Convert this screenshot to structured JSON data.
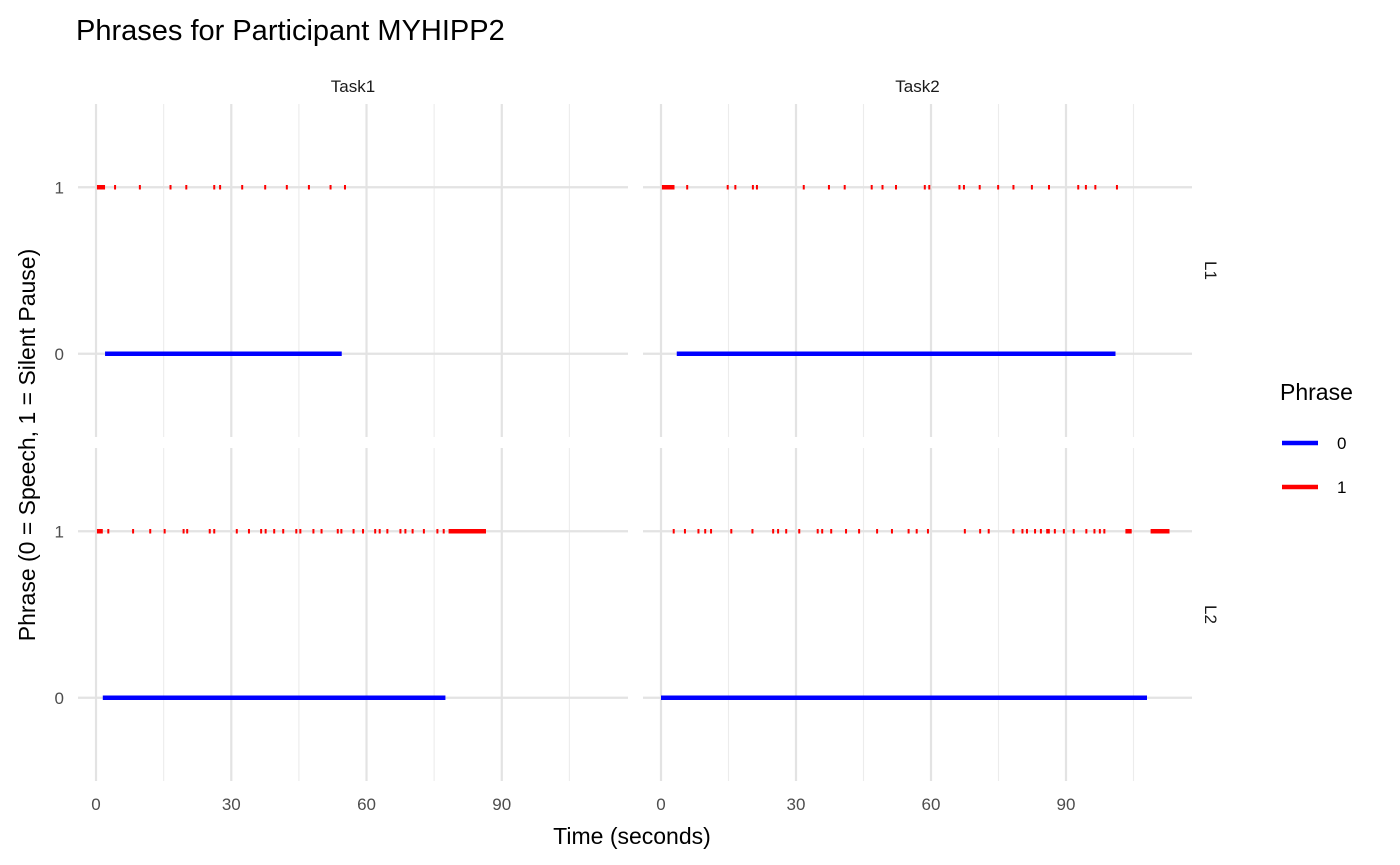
{
  "chart_data": {
    "type": "line",
    "title": "Phrases for Participant MYHIPP2",
    "xlabel": "Time (seconds)",
    "ylabel": "Phrase (0 = Speech, 1 = Silent Pause)",
    "facet_columns": [
      "Task1",
      "Task2"
    ],
    "facet_rows": [
      "L1",
      "L2"
    ],
    "x_ticks": [
      0,
      30,
      60,
      90
    ],
    "xlim": [
      -4,
      118
    ],
    "y_ticks": [
      0,
      1
    ],
    "ylim": [
      -0.5,
      1.5
    ],
    "grid": true,
    "legend": {
      "title": "Phrase",
      "position": "right",
      "entries": [
        {
          "label": "0",
          "color": "#0000ff"
        },
        {
          "label": "1",
          "color": "#ff0000"
        }
      ]
    },
    "panels": [
      {
        "column": "Task1",
        "row": "L1",
        "series": [
          {
            "name": "0",
            "color": "#0000ff",
            "segments": [
              [
                2.0,
                54.5
              ]
            ]
          },
          {
            "name": "1",
            "color": "#ff0000",
            "segments": [
              [
                0.2,
                2.0
              ],
              [
                4.0,
                4.4
              ],
              [
                9.5,
                9.9
              ],
              [
                16.3,
                16.7
              ],
              [
                19.8,
                20.2
              ],
              [
                26.0,
                26.4
              ],
              [
                27.3,
                27.7
              ],
              [
                32.2,
                32.6
              ],
              [
                37.3,
                37.7
              ],
              [
                42.1,
                42.5
              ],
              [
                47.0,
                47.4
              ],
              [
                51.8,
                52.2
              ],
              [
                55.0,
                55.4
              ]
            ]
          }
        ]
      },
      {
        "column": "Task2",
        "row": "L1",
        "series": [
          {
            "name": "0",
            "color": "#0000ff",
            "segments": [
              [
                3.5,
                101.0
              ]
            ]
          },
          {
            "name": "1",
            "color": "#ff0000",
            "segments": [
              [
                0.2,
                3.0
              ],
              [
                5.6,
                6.0
              ],
              [
                14.6,
                15.0
              ],
              [
                16.3,
                16.7
              ],
              [
                20.2,
                20.6
              ],
              [
                21.1,
                21.5
              ],
              [
                31.5,
                31.9
              ],
              [
                37.1,
                37.5
              ],
              [
                40.6,
                41.0
              ],
              [
                46.6,
                47.0
              ],
              [
                49.0,
                49.4
              ],
              [
                52.0,
                52.4
              ],
              [
                58.4,
                58.8
              ],
              [
                59.4,
                59.8
              ],
              [
                66.1,
                66.5
              ],
              [
                67.1,
                67.5
              ],
              [
                70.6,
                71.0
              ],
              [
                74.7,
                75.1
              ],
              [
                78.1,
                78.5
              ],
              [
                82.2,
                82.6
              ],
              [
                86.0,
                86.4
              ],
              [
                92.5,
                92.9
              ],
              [
                94.2,
                94.6
              ],
              [
                96.3,
                96.7
              ],
              [
                101.1,
                101.5
              ]
            ]
          }
        ]
      },
      {
        "column": "Task1",
        "row": "L2",
        "series": [
          {
            "name": "0",
            "color": "#0000ff",
            "segments": [
              [
                1.5,
                77.5
              ]
            ]
          },
          {
            "name": "1",
            "color": "#ff0000",
            "segments": [
              [
                0.2,
                1.5
              ],
              [
                2.5,
                2.9
              ],
              [
                8.0,
                8.4
              ],
              [
                11.8,
                12.2
              ],
              [
                15.0,
                15.4
              ],
              [
                19.2,
                19.6
              ],
              [
                20.0,
                20.4
              ],
              [
                25.0,
                25.4
              ],
              [
                26.0,
                26.4
              ],
              [
                31.0,
                31.4
              ],
              [
                33.7,
                34.1
              ],
              [
                36.4,
                36.8
              ],
              [
                37.4,
                37.8
              ],
              [
                39.3,
                39.7
              ],
              [
                41.3,
                41.7
              ],
              [
                44.2,
                44.6
              ],
              [
                45.1,
                45.5
              ],
              [
                48.0,
                48.4
              ],
              [
                49.8,
                50.2
              ],
              [
                53.4,
                53.8
              ],
              [
                54.2,
                54.6
              ],
              [
                56.9,
                57.3
              ],
              [
                59.0,
                59.4
              ],
              [
                61.7,
                62.1
              ],
              [
                62.7,
                63.1
              ],
              [
                64.4,
                64.8
              ],
              [
                67.3,
                67.7
              ],
              [
                68.4,
                68.8
              ],
              [
                70.0,
                70.4
              ],
              [
                72.5,
                72.9
              ],
              [
                75.5,
                75.9
              ],
              [
                76.9,
                77.3
              ],
              [
                78.2,
                86.5
              ]
            ]
          }
        ]
      },
      {
        "column": "Task2",
        "row": "L2",
        "series": [
          {
            "name": "0",
            "color": "#0000ff",
            "segments": [
              [
                0.0,
                108.0
              ]
            ]
          },
          {
            "name": "1",
            "color": "#ff0000",
            "segments": [
              [
                2.6,
                3.0
              ],
              [
                5.1,
                5.5
              ],
              [
                8.1,
                8.5
              ],
              [
                9.6,
                10.0
              ],
              [
                10.9,
                11.3
              ],
              [
                15.4,
                15.8
              ],
              [
                20.1,
                20.5
              ],
              [
                24.7,
                25.1
              ],
              [
                25.8,
                26.2
              ],
              [
                27.6,
                28.0
              ],
              [
                30.5,
                30.9
              ],
              [
                34.6,
                35.0
              ],
              [
                35.6,
                36.0
              ],
              [
                37.6,
                38.0
              ],
              [
                40.9,
                41.3
              ],
              [
                43.8,
                44.2
              ],
              [
                47.8,
                48.2
              ],
              [
                51.1,
                51.5
              ],
              [
                54.8,
                55.2
              ],
              [
                56.6,
                57.0
              ],
              [
                59.1,
                59.5
              ],
              [
                67.3,
                67.7
              ],
              [
                70.7,
                71.1
              ],
              [
                72.6,
                73.0
              ],
              [
                78.1,
                78.5
              ],
              [
                80.1,
                80.5
              ],
              [
                81.1,
                81.5
              ],
              [
                82.9,
                83.3
              ],
              [
                84.2,
                84.6
              ],
              [
                85.6,
                86.4
              ],
              [
                87.3,
                87.7
              ],
              [
                89.3,
                89.7
              ],
              [
                91.5,
                91.9
              ],
              [
                94.3,
                94.7
              ],
              [
                96.1,
                96.5
              ],
              [
                97.3,
                97.7
              ],
              [
                98.3,
                98.7
              ],
              [
                103.2,
                104.6
              ],
              [
                108.8,
                113.0
              ]
            ]
          }
        ]
      }
    ]
  }
}
